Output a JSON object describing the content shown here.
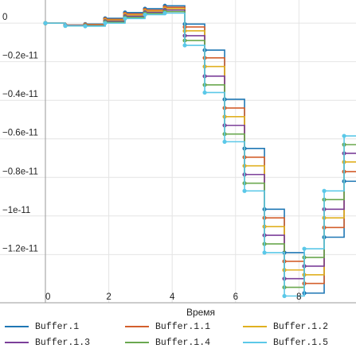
{
  "chart_data": {
    "type": "line",
    "subtype": "step",
    "title": "",
    "xlabel": "Время",
    "ylabel": "",
    "xlim": [
      0,
      9.8
    ],
    "ylim": [
      -1.45e-11,
      1.2e-12
    ],
    "grid": true,
    "legend_position": "bottom",
    "x_ticks": [
      {
        "value": 0,
        "label": "0"
      },
      {
        "value": 2,
        "label": "2"
      },
      {
        "value": 4,
        "label": "4"
      },
      {
        "value": 6,
        "label": "6"
      },
      {
        "value": 8,
        "label": "8"
      }
    ],
    "y_ticks": [
      {
        "value": 0,
        "label": "0"
      },
      {
        "value": -2e-12,
        "label": "−0.2e-11"
      },
      {
        "value": -4e-12,
        "label": "−0.4e-11"
      },
      {
        "value": -6e-12,
        "label": "−0.6e-11"
      },
      {
        "value": -8e-12,
        "label": "−0.8e-11"
      },
      {
        "value": -1e-11,
        "label": "−1e-11"
      },
      {
        "value": -1.2e-11,
        "label": "−1.2e-11"
      }
    ],
    "x": [
      0,
      0.628,
      1.257,
      1.885,
      2.513,
      3.142,
      3.77,
      4.398,
      5.027,
      5.655,
      6.283,
      6.912,
      7.54,
      8.168,
      8.796,
      9.425
    ],
    "series": [
      {
        "name": "Buffer.1",
        "color": "#1f77b4",
        "values": [
          0,
          -1e-13,
          -5e-14,
          2.5e-13,
          5.5e-13,
          7.5e-13,
          9e-13,
          -5e-14,
          -1.4e-12,
          -3.95e-12,
          -6.5e-12,
          -9.65e-12,
          -1.19e-11,
          -1.4e-11,
          -1.11e-11,
          -8.2e-12
        ]
      },
      {
        "name": "Buffer.1.1",
        "color": "#d35f2c",
        "values": [
          0,
          -1e-13,
          -7e-14,
          2e-13,
          4.8e-13,
          6.8e-13,
          8.2e-13,
          -2e-13,
          -1.8e-12,
          -4.4e-12,
          -6.95e-12,
          -1.01e-11,
          -1.235e-11,
          -1.35e-11,
          -1.06e-11,
          -7.7e-12
        ]
      },
      {
        "name": "Buffer.1.2",
        "color": "#e0b020",
        "values": [
          0,
          -1.2e-13,
          -1e-13,
          1.5e-13,
          4.2e-13,
          6.2e-13,
          7.5e-13,
          -4e-13,
          -2.25e-12,
          -4.85e-12,
          -7.4e-12,
          -1.055e-11,
          -1.28e-11,
          -1.305e-11,
          -1.01e-11,
          -7.2e-12
        ]
      },
      {
        "name": "Buffer.1.3",
        "color": "#7b3f99",
        "values": [
          0,
          -1.2e-13,
          -1.2e-13,
          1e-13,
          3.6e-13,
          5.6e-13,
          6.8e-13,
          -6.5e-13,
          -2.75e-12,
          -5.3e-12,
          -7.85e-12,
          -1.1e-11,
          -1.325e-11,
          -1.26e-11,
          -9.65e-12,
          -6.75e-12
        ]
      },
      {
        "name": "Buffer.1.4",
        "color": "#6aa84f",
        "values": [
          0,
          -1.4e-13,
          -1.4e-13,
          5e-14,
          3e-13,
          5e-13,
          6e-13,
          -9e-13,
          -3.2e-12,
          -5.75e-12,
          -8.3e-12,
          -1.145e-11,
          -1.37e-11,
          -1.215e-11,
          -9.15e-12,
          -6.3e-12
        ]
      },
      {
        "name": "Buffer.1.5",
        "color": "#5bc8e8",
        "values": [
          0,
          -1.4e-13,
          -1.6e-13,
          0.0,
          2.4e-13,
          4.4e-13,
          5.2e-13,
          -1.15e-12,
          -3.6e-12,
          -6.15e-12,
          -8.7e-12,
          -1.19e-11,
          -1.415e-11,
          -1.17e-11,
          -8.7e-12,
          -5.85e-12
        ]
      }
    ]
  }
}
